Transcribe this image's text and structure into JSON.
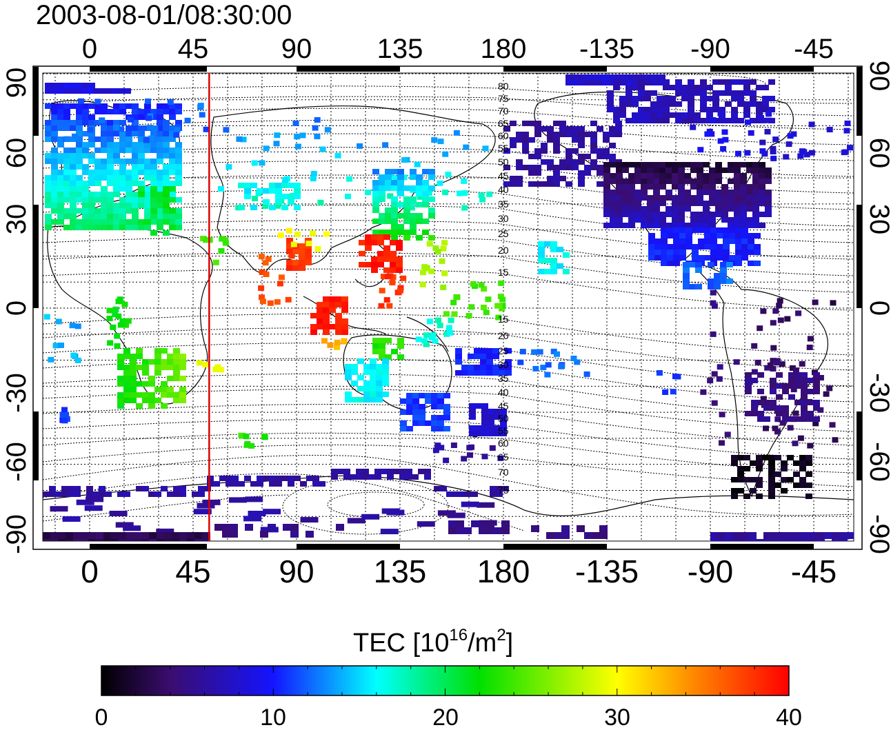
{
  "title": "2003-08-01/08:30:00",
  "top_ticks": [
    "0",
    "45",
    "90",
    "135",
    "180",
    "-135",
    "-90",
    "-45"
  ],
  "bottom_ticks": [
    "0",
    "45",
    "90",
    "135",
    "180",
    "-135",
    "-90",
    "-45"
  ],
  "left_ticks": [
    "90",
    "60",
    "30",
    "0",
    "-30",
    "-60",
    "-90"
  ],
  "right_ticks": [
    "90",
    "60",
    "30",
    "0",
    "-30",
    "-60",
    "-90"
  ],
  "contour_labels_north": [
    "80",
    "75",
    "70",
    "65",
    "60",
    "55",
    "50",
    "45",
    "40",
    "35",
    "30",
    "25",
    "20",
    "15"
  ],
  "contour_labels_south": [
    "15",
    "20",
    "25",
    "30",
    "35",
    "40",
    "45",
    "50",
    "55",
    "60",
    "65",
    "70",
    "75"
  ],
  "colorbar": {
    "label_main": "TEC  [10",
    "label_sup1": "16",
    "label_mid": "/m",
    "label_sup2": "2",
    "label_end": "]",
    "ticks": [
      "0",
      "10",
      "20",
      "30",
      "40"
    ],
    "min": 0,
    "max": 40,
    "stops": [
      "#000000",
      "#3a0d6e",
      "#1414ff",
      "#00ffff",
      "#00e000",
      "#ffff00",
      "#ff7f00",
      "#ff0000"
    ]
  },
  "marker_longitude": 52,
  "marker_color": "#e00000"
}
